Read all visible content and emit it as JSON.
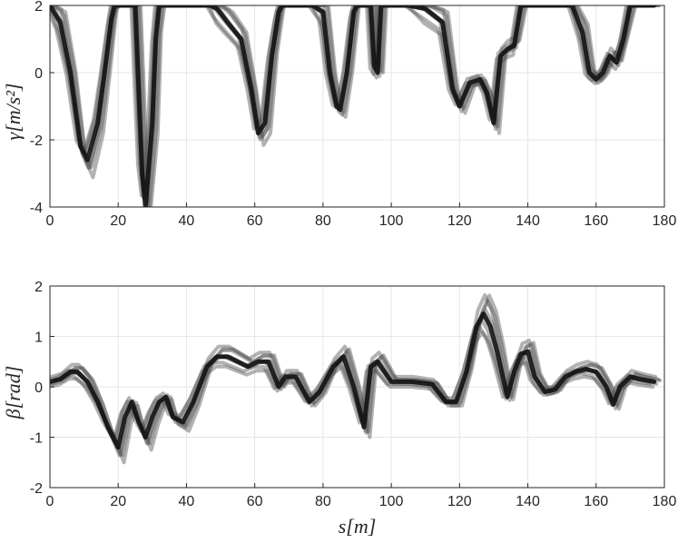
{
  "chart_data": [
    {
      "type": "line",
      "ylabel": "γ[m/s²]",
      "xlabel": "",
      "xlim": [
        0,
        180
      ],
      "ylim": [
        -4,
        2
      ],
      "xticks": [
        "0",
        "20",
        "40",
        "60",
        "80",
        "100",
        "120",
        "140",
        "160",
        "180"
      ],
      "yticks": [
        "-4",
        "-2",
        "0",
        "2"
      ],
      "grid": true,
      "mean": [
        [
          0,
          2
        ],
        [
          3,
          1.5
        ],
        [
          6,
          0
        ],
        [
          9,
          -2.2
        ],
        [
          11,
          -2.6
        ],
        [
          14,
          -1.5
        ],
        [
          16,
          0
        ],
        [
          18,
          1.6
        ],
        [
          19,
          2
        ],
        [
          25,
          2
        ],
        [
          26,
          -0.5
        ],
        [
          27,
          -3
        ],
        [
          28,
          -4
        ],
        [
          30,
          -1.5
        ],
        [
          31,
          1
        ],
        [
          32,
          2
        ],
        [
          47,
          2
        ],
        [
          49,
          1.9
        ],
        [
          52,
          1.5
        ],
        [
          56,
          1
        ],
        [
          59,
          -0.5
        ],
        [
          61,
          -1.8
        ],
        [
          63,
          -1.5
        ],
        [
          65,
          0.5
        ],
        [
          67,
          1.8
        ],
        [
          68,
          2
        ],
        [
          77,
          2
        ],
        [
          80,
          1.8
        ],
        [
          82,
          0
        ],
        [
          84,
          -1
        ],
        [
          85,
          -1.1
        ],
        [
          87,
          0
        ],
        [
          89,
          1.8
        ],
        [
          90,
          2
        ],
        [
          94,
          2
        ],
        [
          95,
          0.2
        ],
        [
          96,
          0
        ],
        [
          97,
          2
        ],
        [
          105,
          2
        ],
        [
          110,
          1.9
        ],
        [
          115,
          1.5
        ],
        [
          118,
          -0.5
        ],
        [
          120,
          -1
        ],
        [
          123,
          -0.3
        ],
        [
          126,
          -0.2
        ],
        [
          128,
          -0.6
        ],
        [
          130,
          -1.5
        ],
        [
          132,
          0.5
        ],
        [
          134,
          0.7
        ],
        [
          136,
          0.8
        ],
        [
          138,
          2
        ],
        [
          153,
          2
        ],
        [
          156,
          1.2
        ],
        [
          158,
          0
        ],
        [
          160,
          -0.2
        ],
        [
          162,
          0
        ],
        [
          164,
          0.5
        ],
        [
          166,
          0.3
        ],
        [
          168,
          1
        ],
        [
          170,
          2
        ],
        [
          177,
          2
        ]
      ],
      "ghosts": [
        {
          "dx": -0.7,
          "dy": 0.1,
          "ky": 0.95
        },
        {
          "dx": 0.6,
          "dy": -0.1,
          "ky": 1.05
        },
        {
          "dx": 1.2,
          "dy": 0.05,
          "ky": 1.1
        },
        {
          "dx": -1.2,
          "dy": -0.05,
          "ky": 0.9
        },
        {
          "dx": 0.3,
          "dy": 0.15,
          "ky": 1.15
        },
        {
          "dx": -0.3,
          "dy": -0.15,
          "ky": 0.85
        },
        {
          "dx": 1.6,
          "dy": 0,
          "ky": 1.2
        }
      ]
    },
    {
      "type": "line",
      "ylabel": "β[rad]",
      "xlabel": "s[m]",
      "xlim": [
        0,
        180
      ],
      "ylim": [
        -2,
        2
      ],
      "xticks": [
        "0",
        "20",
        "40",
        "60",
        "80",
        "100",
        "120",
        "140",
        "160",
        "180"
      ],
      "yticks": [
        "-2",
        "-1",
        "0",
        "1",
        "2"
      ],
      "grid": true,
      "mean": [
        [
          0,
          0.1
        ],
        [
          3,
          0.15
        ],
        [
          6,
          0.3
        ],
        [
          8,
          0.3
        ],
        [
          11,
          0.1
        ],
        [
          14,
          -0.3
        ],
        [
          17,
          -0.8
        ],
        [
          20,
          -1.2
        ],
        [
          22,
          -0.6
        ],
        [
          24,
          -0.3
        ],
        [
          26,
          -0.7
        ],
        [
          28,
          -1
        ],
        [
          30,
          -0.6
        ],
        [
          32,
          -0.3
        ],
        [
          34,
          -0.2
        ],
        [
          36,
          -0.6
        ],
        [
          39,
          -0.7
        ],
        [
          42,
          -0.3
        ],
        [
          46,
          0.4
        ],
        [
          49,
          0.6
        ],
        [
          52,
          0.6
        ],
        [
          55,
          0.5
        ],
        [
          58,
          0.4
        ],
        [
          61,
          0.5
        ],
        [
          64,
          0.5
        ],
        [
          67,
          0
        ],
        [
          69,
          0.2
        ],
        [
          72,
          0.2
        ],
        [
          76,
          -0.3
        ],
        [
          79,
          -0.1
        ],
        [
          83,
          0.4
        ],
        [
          86,
          0.6
        ],
        [
          89,
          0
        ],
        [
          92,
          -0.8
        ],
        [
          94,
          0.4
        ],
        [
          96,
          0.5
        ],
        [
          100,
          0.1
        ],
        [
          106,
          0.1
        ],
        [
          112,
          0.05
        ],
        [
          116,
          -0.3
        ],
        [
          119,
          -0.3
        ],
        [
          122,
          0.3
        ],
        [
          125,
          1.2
        ],
        [
          127,
          1.45
        ],
        [
          129,
          1.2
        ],
        [
          131,
          0.7
        ],
        [
          133,
          0.1
        ],
        [
          134,
          -0.2
        ],
        [
          136,
          0.3
        ],
        [
          138,
          0.65
        ],
        [
          140,
          0.7
        ],
        [
          142,
          0.2
        ],
        [
          145,
          -0.1
        ],
        [
          148,
          -0.05
        ],
        [
          151,
          0.2
        ],
        [
          154,
          0.3
        ],
        [
          157,
          0.35
        ],
        [
          160,
          0.3
        ],
        [
          163,
          0
        ],
        [
          165,
          -0.35
        ],
        [
          167,
          0
        ],
        [
          170,
          0.2
        ],
        [
          173,
          0.15
        ],
        [
          177,
          0.1
        ]
      ],
      "ghosts": [
        {
          "dx": -0.8,
          "dy": 0.05,
          "ky": 0.9
        },
        {
          "dx": 0.7,
          "dy": -0.05,
          "ky": 1.08
        },
        {
          "dx": 1.3,
          "dy": 0.03,
          "ky": 1.15
        },
        {
          "dx": -1.3,
          "dy": -0.03,
          "ky": 0.85
        },
        {
          "dx": 0.4,
          "dy": 0.08,
          "ky": 1.2
        },
        {
          "dx": -0.4,
          "dy": -0.08,
          "ky": 0.8
        },
        {
          "dx": 1.7,
          "dy": 0,
          "ky": 1.25
        }
      ]
    }
  ]
}
